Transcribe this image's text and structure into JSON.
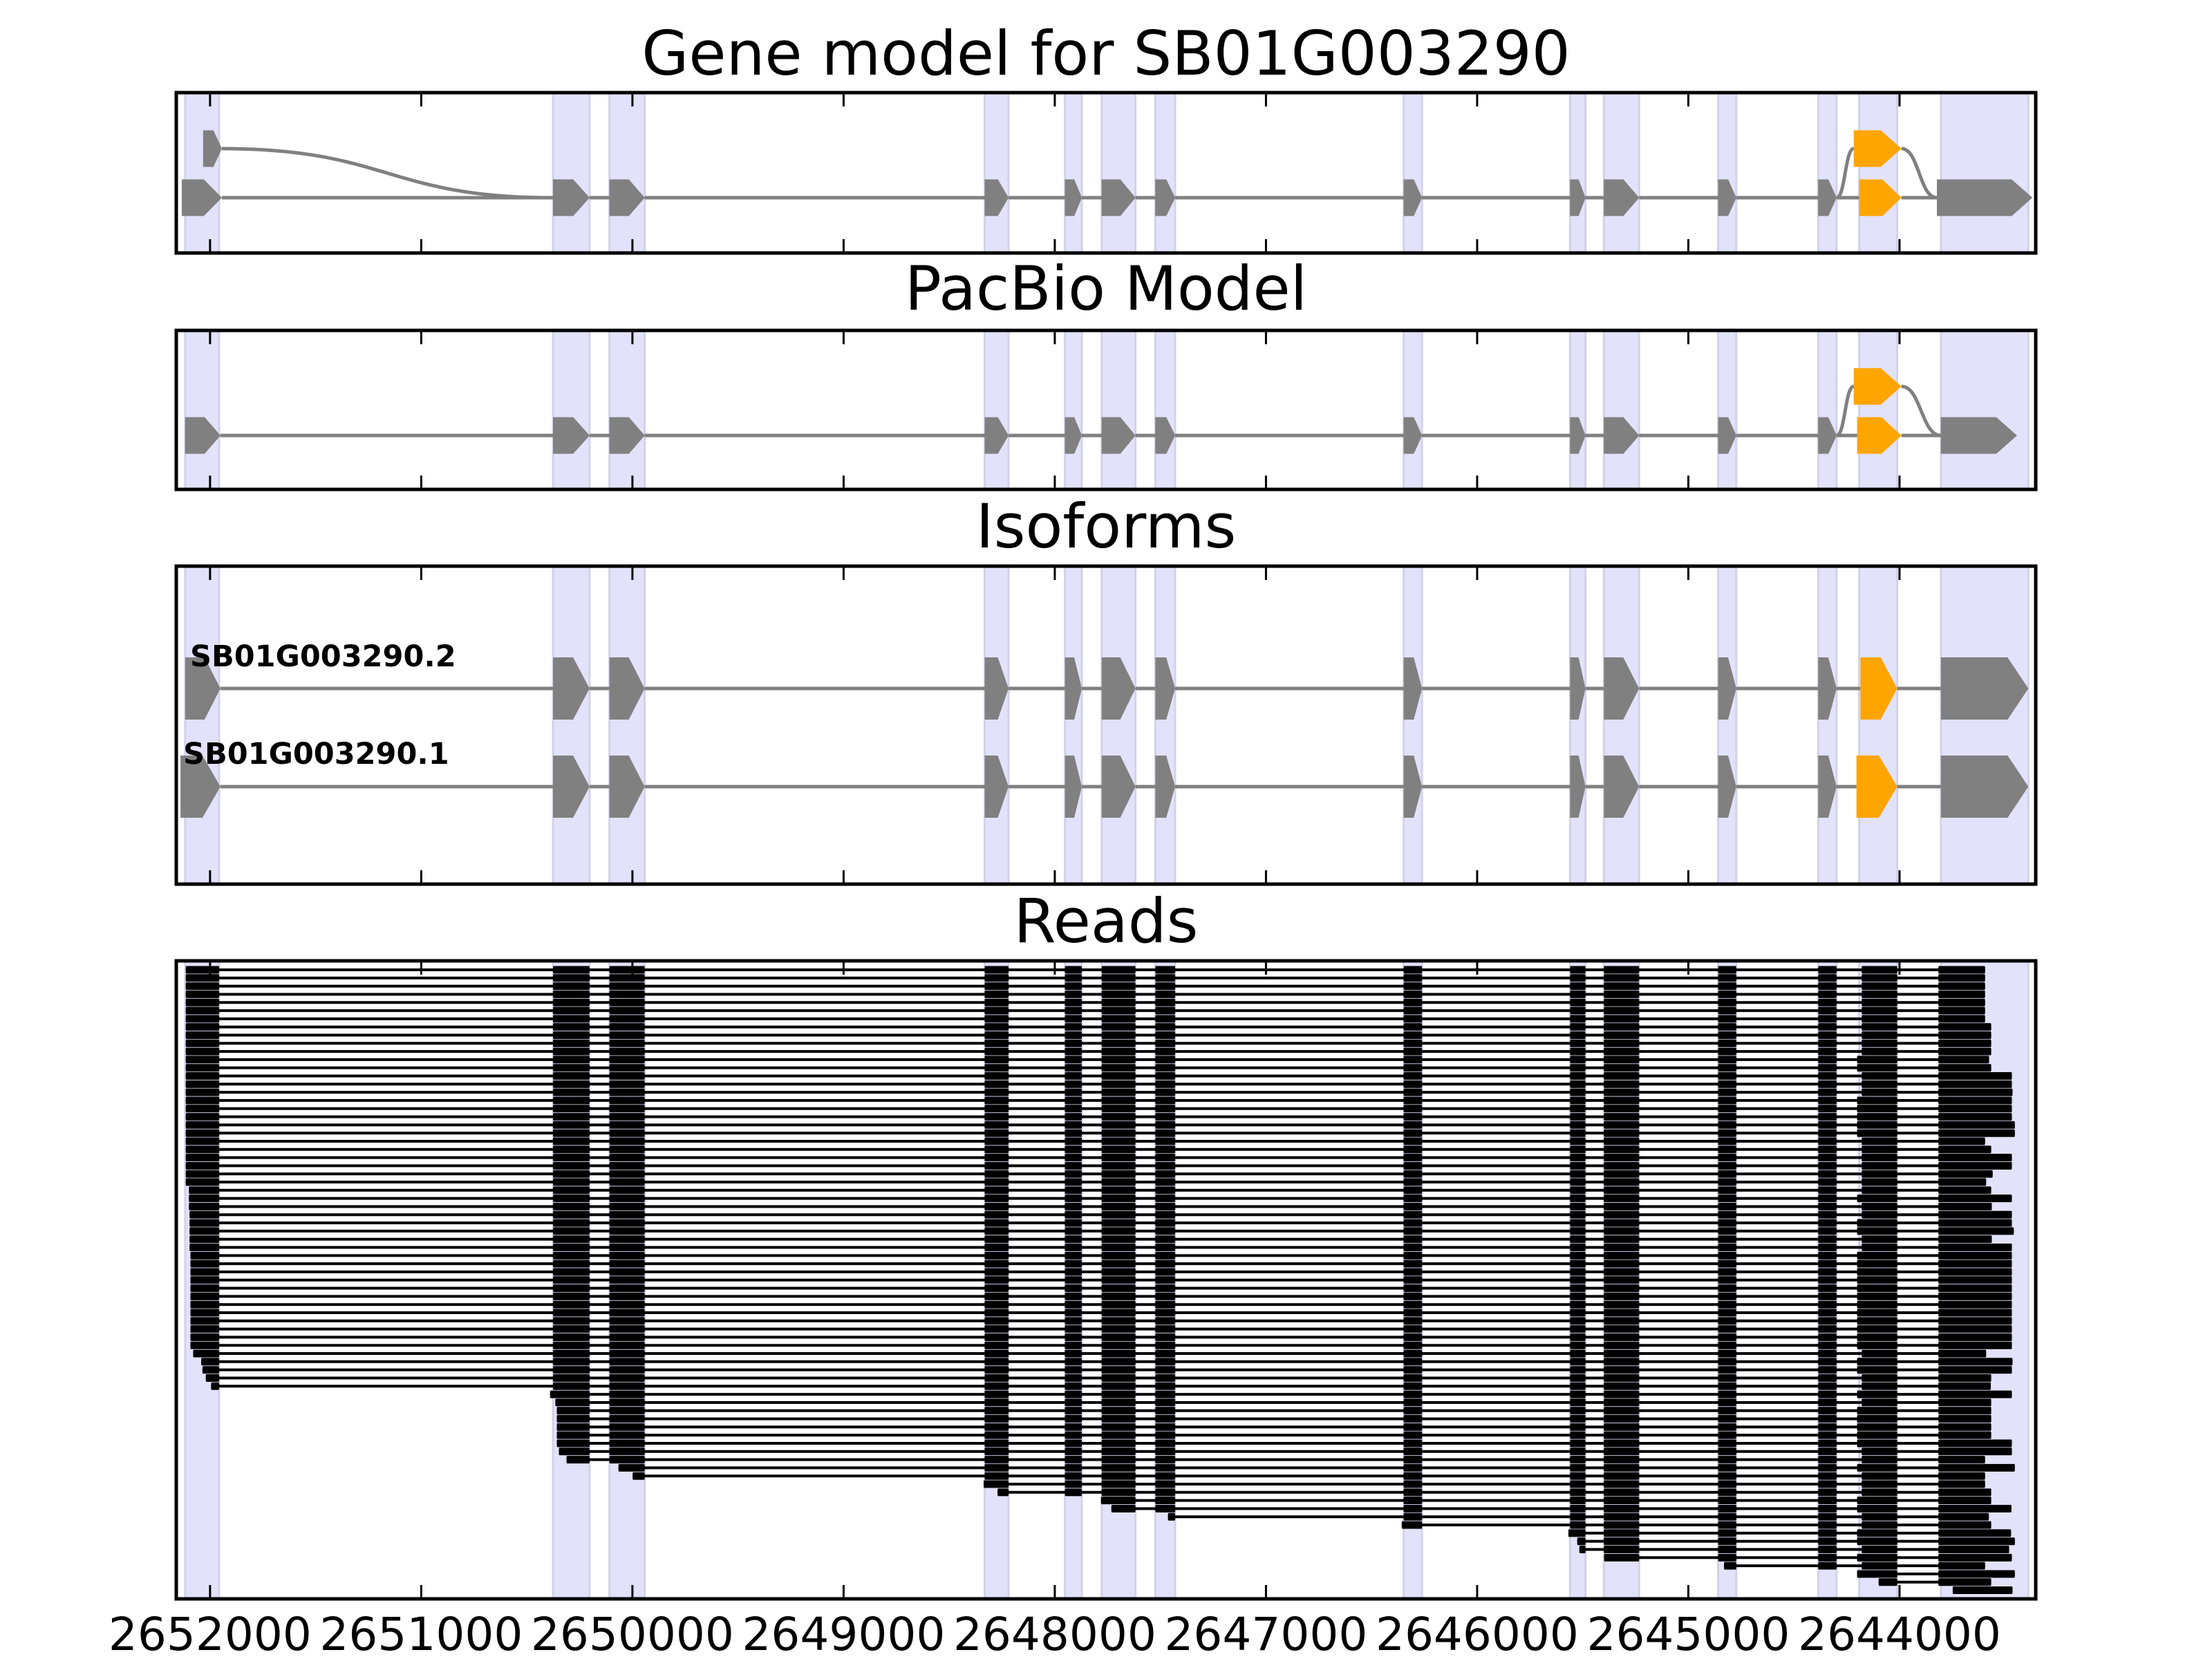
{
  "chart_data": {
    "type": "bar",
    "xlim": [
      2652160,
      2643355
    ],
    "x_ticks": [
      2652000,
      2651000,
      2650000,
      2649000,
      2648000,
      2647000,
      2646000,
      2645000,
      2644000
    ],
    "x_tick_labels": [
      "2652000",
      "2651000",
      "2650000",
      "2649000",
      "2648000",
      "2647000",
      "2646000",
      "2645000",
      "2644000"
    ],
    "colors": {
      "exon": "#808080",
      "alt_exon": "#ffa500",
      "read": "#000000",
      "highlight": "#e2e2fb",
      "highlight_edge": "#d2d2ea",
      "frame": "#000000"
    },
    "highlight_regions": [
      [
        2652118,
        2651957
      ],
      [
        2650376,
        2650203
      ],
      [
        2650109,
        2649942
      ],
      [
        2648332,
        2648219
      ],
      [
        2647952,
        2647872
      ],
      [
        2647778,
        2647618
      ],
      [
        2647524,
        2647430
      ],
      [
        2646348,
        2646261
      ],
      [
        2645560,
        2645487
      ],
      [
        2645400,
        2645233
      ],
      [
        2644859,
        2644773
      ],
      [
        2644385,
        2644298
      ],
      [
        2644191,
        2644011
      ],
      [
        2643804,
        2643390
      ]
    ],
    "core_exons": [
      [
        2650376,
        2650203
      ],
      [
        2650109,
        2649942
      ],
      [
        2648332,
        2648219
      ],
      [
        2647952,
        2647872
      ],
      [
        2647778,
        2647618
      ],
      [
        2647524,
        2647430
      ],
      [
        2646348,
        2646261
      ],
      [
        2645560,
        2645487
      ],
      [
        2645400,
        2645233
      ],
      [
        2644859,
        2644773
      ],
      [
        2644385,
        2644298
      ]
    ],
    "panels": [
      {
        "title": "Gene model for SB01G003290",
        "transcripts": [
          {
            "first": [
              2652134,
              2651944,
              1
            ],
            "core_row": 1,
            "alt": [
              2644191,
              2643991,
              1
            ],
            "last": [
              2643823,
              2643371,
              1
            ]
          },
          {
            "first": [
              2652033,
              2651944,
              0
            ],
            "core_row": 1,
            "alt": [
              2644217,
              2643991,
              0
            ],
            "last": [
              2643823,
              2643371,
              1
            ]
          }
        ]
      },
      {
        "title": "PacBio Model",
        "transcripts": [
          {
            "first": [
              2652118,
              2651951,
              1
            ],
            "core_row": 1,
            "alt": [
              2644201,
              2643991,
              1
            ],
            "last": [
              2643804,
              2643444,
              1
            ]
          },
          {
            "first": [
              2652118,
              2651951,
              1
            ],
            "core_row": 1,
            "alt": [
              2644217,
              2643991,
              0
            ],
            "last": [
              2643804,
              2643444,
              1
            ]
          }
        ]
      },
      {
        "title": "Isoforms",
        "transcripts": [
          {
            "label": "SB01G003290.2",
            "first": [
              2652118,
              2651951,
              0
            ],
            "core_row": 0,
            "alt": [
              2644185,
              2644011,
              0
            ],
            "last": [
              2643804,
              2643390,
              0
            ]
          },
          {
            "label": "SB01G003290.1",
            "first": [
              2652140,
              2651951,
              1
            ],
            "core_row": 1,
            "alt": [
              2644204,
              2644011,
              1
            ],
            "last": [
              2643804,
              2643390,
              1
            ]
          }
        ]
      }
    ],
    "reads": {
      "title": "Reads",
      "exon_bounds": [
        [
          2652115,
          2651957
        ],
        [
          2650376,
          2650203
        ],
        [
          2650109,
          2649942
        ],
        [
          2648332,
          2648219
        ],
        [
          2647952,
          2647872
        ],
        [
          2647778,
          2647618
        ],
        [
          2647524,
          2647430
        ],
        [
          2646348,
          2646261
        ],
        [
          2645560,
          2645487
        ],
        [
          2645400,
          2645233
        ],
        [
          2644859,
          2644773
        ],
        [
          2644385,
          2644298
        ],
        [
          2644191,
          2644011
        ],
        [
          2643816,
          2643465
        ]
      ],
      "rows": [
        [
          0,
          2652115,
          2644179,
          2643595
        ],
        [
          0,
          2652115,
          2644179,
          2643595
        ],
        [
          0,
          2652115,
          2644179,
          2643595
        ],
        [
          0,
          2652115,
          2644179,
          2643595
        ],
        [
          0,
          2652115,
          2644179,
          2643595
        ],
        [
          0,
          2652115,
          2644179,
          2643595
        ],
        [
          0,
          2652115,
          2644179,
          2643595
        ],
        [
          0,
          2652115,
          2644179,
          2643566
        ],
        [
          0,
          2652115,
          2644179,
          2643566
        ],
        [
          0,
          2652115,
          2644179,
          2643566
        ],
        [
          0,
          2652115,
          2644179,
          2643566
        ],
        [
          0,
          2652115,
          2644201,
          2643576
        ],
        [
          0,
          2652115,
          2644201,
          2643566
        ],
        [
          0,
          2652115,
          2644179,
          2643468
        ],
        [
          0,
          2652115,
          2644179,
          2643468
        ],
        [
          0,
          2652115,
          2644179,
          2643465
        ],
        [
          0,
          2652115,
          2644201,
          2643468
        ],
        [
          0,
          2652115,
          2644201,
          2643468
        ],
        [
          0,
          2652115,
          2644201,
          2643468
        ],
        [
          0,
          2652115,
          2644201,
          2643454
        ],
        [
          0,
          2652115,
          2644201,
          2643454
        ],
        [
          0,
          2652115,
          2644179,
          2643595
        ],
        [
          0,
          2652115,
          2644179,
          2643566
        ],
        [
          0,
          2652115,
          2644179,
          2643468
        ],
        [
          0,
          2652115,
          2644179,
          2643468
        ],
        [
          0,
          2652115,
          2644179,
          2643559
        ],
        [
          0,
          2652115,
          2644179,
          2643590
        ],
        [
          0,
          2652100,
          2644179,
          2643566
        ],
        [
          0,
          2652100,
          2644201,
          2643468
        ],
        [
          0,
          2652100,
          2644179,
          2643563
        ],
        [
          0,
          2652097,
          2644179,
          2643468
        ],
        [
          0,
          2652097,
          2644201,
          2643468
        ],
        [
          0,
          2652097,
          2644201,
          2643459
        ],
        [
          0,
          2652097,
          2644179,
          2643563
        ],
        [
          0,
          2652097,
          2644179,
          2643468
        ],
        [
          0,
          2652093,
          2644201,
          2643468
        ],
        [
          0,
          2652093,
          2644201,
          2643468
        ],
        [
          0,
          2652093,
          2644201,
          2643468
        ],
        [
          0,
          2652093,
          2644201,
          2643468
        ],
        [
          0,
          2652093,
          2644201,
          2643468
        ],
        [
          0,
          2652093,
          2644201,
          2643468
        ],
        [
          0,
          2652093,
          2644201,
          2643468
        ],
        [
          0,
          2652093,
          2644201,
          2643468
        ],
        [
          0,
          2652093,
          2644201,
          2643468
        ],
        [
          0,
          2652093,
          2644201,
          2643468
        ],
        [
          0,
          2652093,
          2644201,
          2643468
        ],
        [
          0,
          2652093,
          2644201,
          2643468
        ],
        [
          0,
          2652080,
          2644179,
          2643590
        ],
        [
          0,
          2652042,
          2644201,
          2643465
        ],
        [
          0,
          2652036,
          2644201,
          2643468
        ],
        [
          0,
          2652020,
          2644179,
          2643566
        ],
        [
          0,
          2651995,
          2644179,
          2643568
        ],
        [
          1,
          2650390,
          2644201,
          2643468
        ],
        [
          1,
          2650365,
          2644179,
          2643566
        ],
        [
          1,
          2650358,
          2644201,
          2643566
        ],
        [
          1,
          2650358,
          2644201,
          2643566
        ],
        [
          1,
          2650358,
          2644201,
          2643566
        ],
        [
          1,
          2650358,
          2644201,
          2643566
        ],
        [
          1,
          2650358,
          2644201,
          2643468
        ],
        [
          1,
          2650348,
          2644179,
          2643468
        ],
        [
          1,
          2650312,
          2644179,
          2643595
        ],
        [
          2,
          2650066,
          2644201,
          2643454
        ],
        [
          2,
          2649999,
          2644179,
          2643595
        ],
        [
          3,
          2648337,
          2644179,
          2643595
        ],
        [
          3,
          2648271,
          2644179,
          2643566
        ],
        [
          5,
          2647781,
          2644201,
          2643566
        ],
        [
          5,
          2647732,
          2644201,
          2643470
        ],
        [
          6,
          2647464,
          2644179,
          2643577
        ],
        [
          7,
          2646357,
          2644179,
          2643566
        ],
        [
          8,
          2645568,
          2644201,
          2643472
        ],
        [
          8,
          2645526,
          2644201,
          2643454
        ],
        [
          8,
          2645516,
          2644179,
          2643481
        ],
        [
          9,
          2645399,
          2644201,
          2643468
        ],
        [
          10,
          2644831,
          2644179,
          2643595
        ],
        [
          12,
          2644201,
          2644201,
          2643454
        ],
        [
          12,
          2644099,
          2644099,
          2643566
        ],
        [
          13,
          2643748,
          null,
          2643465
        ]
      ]
    }
  }
}
